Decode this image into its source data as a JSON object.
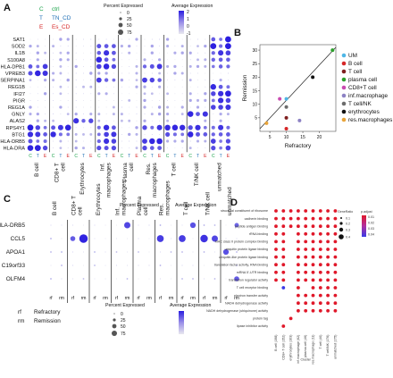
{
  "panel_labels": {
    "a": "A",
    "b": "B",
    "c": "C",
    "d": "D"
  },
  "panel_a": {
    "condition_legend": [
      {
        "code": "C",
        "label": "ctrl",
        "color": "#1aa34a"
      },
      {
        "code": "T",
        "label": "TN_CD",
        "color": "#1f6fb5"
      },
      {
        "code": "E",
        "label": "Es_CD",
        "color": "#d62728"
      }
    ],
    "pct_title": "Percent Expressed",
    "pct_ticks": [
      "0",
      "25",
      "50",
      "75"
    ],
    "avg_title": "Average Expression",
    "avg_ticks": [
      "2",
      "1",
      "0",
      "-1"
    ],
    "genes": [
      "SAT1",
      "SOD2",
      "IL1B",
      "S100A8",
      "HLA-DPB1",
      "VPREB3",
      "SERPINA1",
      "REG1B",
      "IFI27",
      "PIGR",
      "REG1A",
      "GNLY",
      "ALAS2",
      "RPS4Y1",
      "BTG1",
      "HLA-DRB5",
      "HLA-DRA"
    ],
    "groups": [
      "B cell",
      "CD8+ T cell",
      "Erythrocytes",
      "Inf. macrophages",
      "Plasma cell",
      "Res. macrophages",
      "T cell",
      "T/NK cell",
      "unmatched"
    ],
    "column_letters": [
      "C",
      "T",
      "E"
    ]
  },
  "panel_b": {
    "chart_data": {
      "type": "scatter",
      "xlabel": "Refractory",
      "ylabel": "Remission",
      "xlim": [
        2,
        25
      ],
      "ylim": [
        0,
        32
      ],
      "xticks": [
        "5",
        "10",
        "15",
        "20"
      ],
      "yticks": [
        "5",
        "10",
        "15",
        "20",
        "25",
        "30"
      ],
      "points": [
        {
          "name": "UM",
          "x": 10,
          "y": 12,
          "color": "#4fb6e6"
        },
        {
          "name": "B cell",
          "x": 10,
          "y": 1,
          "color": "#d62728"
        },
        {
          "name": "T cell",
          "x": 10,
          "y": 5,
          "color": "#7f1f1f"
        },
        {
          "name": "plasma cell",
          "x": 24,
          "y": 30,
          "color": "#2ca02c"
        },
        {
          "name": "CD8+T cell",
          "x": 8,
          "y": 12,
          "color": "#c94bb0"
        },
        {
          "name": "inf.macrophage",
          "x": 14,
          "y": 4,
          "color": "#8d82c4"
        },
        {
          "name": "T cell/NK",
          "x": 10,
          "y": 9,
          "color": "#6c6c6c"
        },
        {
          "name": "erythrocytes",
          "x": 18,
          "y": 20,
          "color": "#111111"
        },
        {
          "name": "res.macrophages",
          "x": 4,
          "y": 3,
          "color": "#e8a43a"
        }
      ]
    }
  },
  "panel_c": {
    "genes": [
      "HLA-DRB5",
      "CCL5",
      "APOA1",
      "C19orf33",
      "OLFM4"
    ],
    "groups": [
      "B cell",
      "CD8+ T cell",
      "Erythrocytes",
      "Inf. macrophages",
      "Plasma cell",
      "Res. macrophages",
      "T cell",
      "T/NK cell",
      "unmatched"
    ],
    "column_labels": [
      "rf",
      "rm"
    ],
    "legend_rf": "rf",
    "legend_rf_text": "Refractory",
    "legend_rm": "rm",
    "legend_rm_text": "Remission",
    "pct_title": "Percent Expressed",
    "pct_ticks": [
      "0",
      "25",
      "50",
      "75"
    ],
    "avg_title": "Average Expression"
  },
  "panel_d": {
    "size_title": "GeneRatio",
    "size_ticks": [
      "0.1",
      "0.2",
      "0.3",
      "0.4"
    ],
    "color_title": "p.adjust",
    "color_ticks": [
      "0.01",
      "0.02",
      "0.03",
      "0.04"
    ],
    "xlabel": "Cluster",
    "terms": [
      "structural constituent of ribosome",
      "cadherin binding",
      "peptide antigen binding",
      "rRNA binding",
      "MHC class II protein complex binding",
      "ubiquitin protein ligase binding",
      "ubiquitin-like protein ligase binding",
      "translation factor activity, RNA binding",
      "mRNA 5'-UTR binding",
      "translation regulator activity",
      "T cell receptor binding",
      "electron transfer activity",
      "NADH dehydrogenase activity",
      "NADH dehydrogenase (ubiquinone) activity",
      "protein tag",
      "lipase inhibitor activity"
    ],
    "clusters": [
      "B cell (198)",
      "CD8+ T cell (152)",
      "erythrocytes (103)",
      "inf.macrophage (62)",
      "plasma cell (46)",
      "res.macrophage (11)",
      "T cell (40)",
      "T cell/NK (176)",
      "unmatched (175)"
    ]
  }
}
